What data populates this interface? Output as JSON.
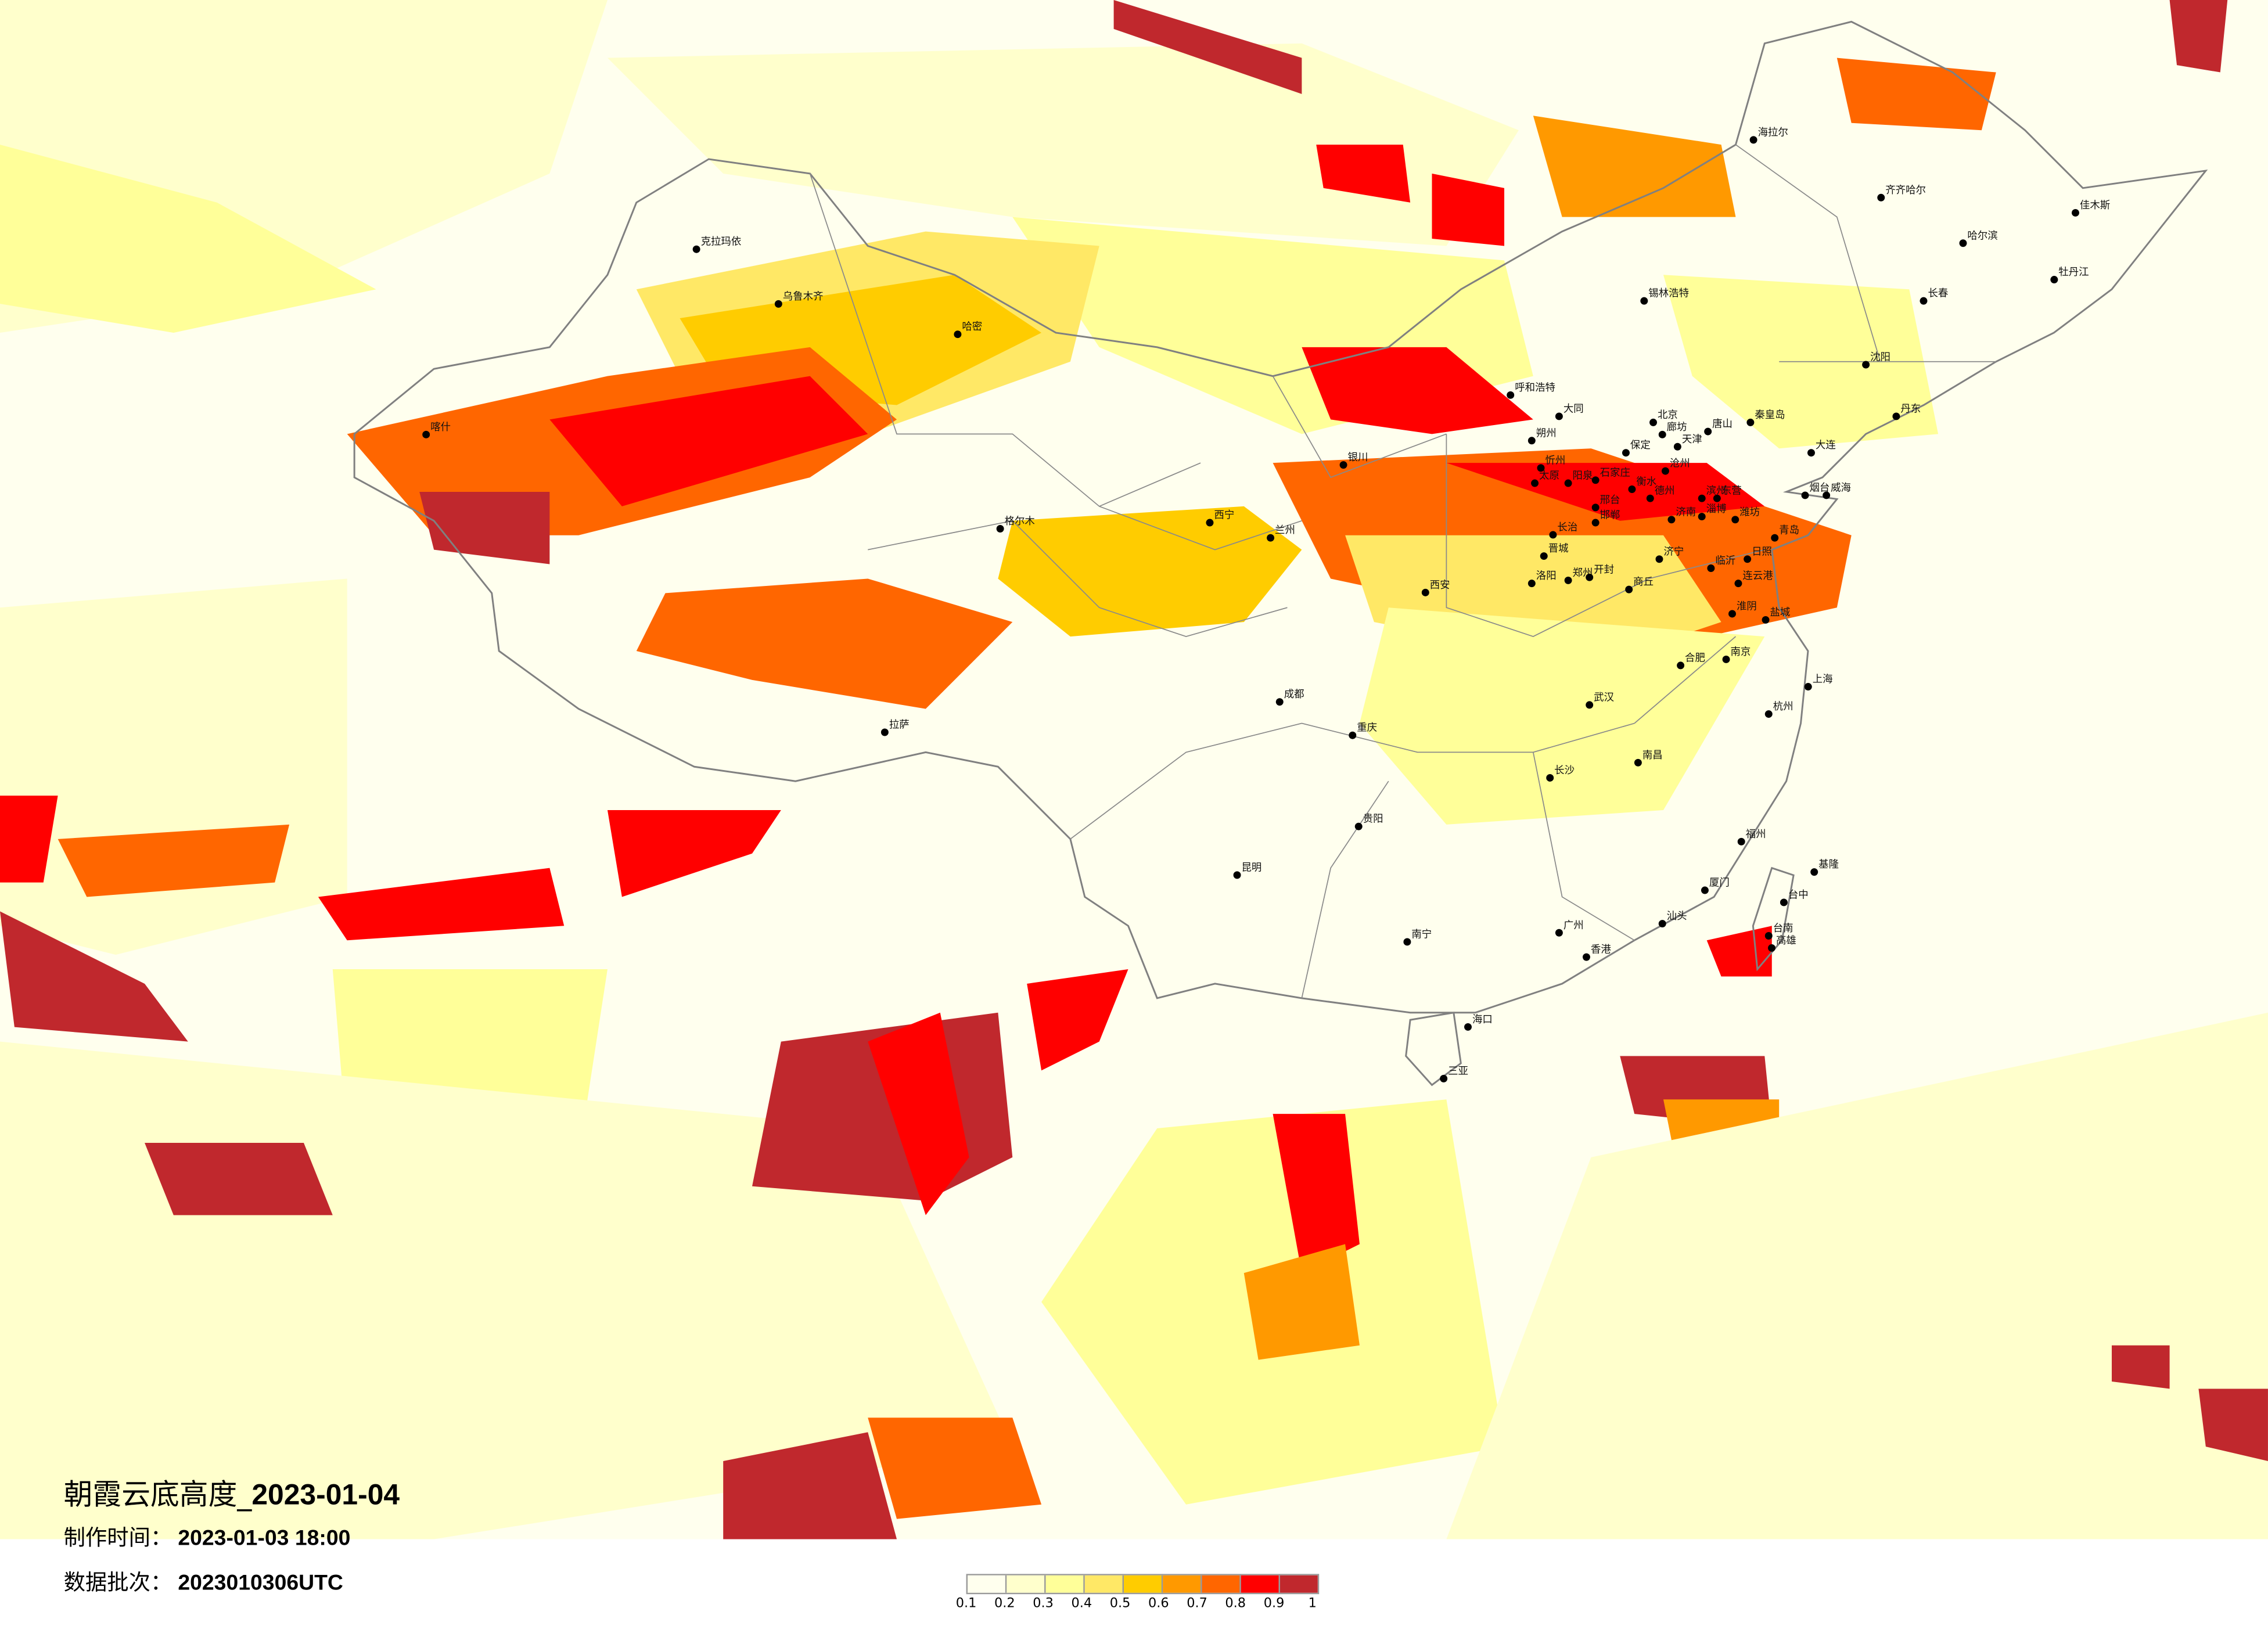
{
  "title": {
    "name": "朝霞云底高度_",
    "date": "2023-01-04"
  },
  "production_time": {
    "label": "制作时间：",
    "value": "2023-01-03 18:00"
  },
  "data_batch": {
    "label": "数据批次：",
    "value": "2023010306UTC"
  },
  "legend": {
    "labels": [
      "0.1",
      "0.2",
      "0.3",
      "0.4",
      "0.5",
      "0.6",
      "0.7",
      "0.8",
      "0.9",
      "1"
    ],
    "colors": [
      "#FFFFEE",
      "#FFFFCC",
      "#FFFF99",
      "#FFE866",
      "#FFCC00",
      "#FF9900",
      "#FF6600",
      "#FF0000",
      "#C0282D"
    ]
  },
  "map": {
    "background_color": "#FFFFEE",
    "border_color": "#808080",
    "cities": [
      {
        "name": "北京",
        "lon": 116.4,
        "lat": 39.9
      },
      {
        "name": "天津",
        "lon": 117.2,
        "lat": 39.1
      },
      {
        "name": "廊坊",
        "lon": 116.7,
        "lat": 39.5
      },
      {
        "name": "唐山",
        "lon": 118.2,
        "lat": 39.6
      },
      {
        "name": "秦皇岛",
        "lon": 119.6,
        "lat": 39.9
      },
      {
        "name": "保定",
        "lon": 115.5,
        "lat": 38.9
      },
      {
        "name": "沧州",
        "lon": 116.8,
        "lat": 38.3
      },
      {
        "name": "石家庄",
        "lon": 114.5,
        "lat": 38.0
      },
      {
        "name": "衡水",
        "lon": 115.7,
        "lat": 37.7
      },
      {
        "name": "德州",
        "lon": 116.3,
        "lat": 37.4
      },
      {
        "name": "滨州",
        "lon": 118.0,
        "lat": 37.4
      },
      {
        "name": "东营",
        "lon": 118.5,
        "lat": 37.4
      },
      {
        "name": "邢台",
        "lon": 114.5,
        "lat": 37.1
      },
      {
        "name": "邯郸",
        "lon": 114.5,
        "lat": 36.6
      },
      {
        "name": "济南",
        "lon": 117.0,
        "lat": 36.7
      },
      {
        "name": "淄博",
        "lon": 118.0,
        "lat": 36.8
      },
      {
        "name": "潍坊",
        "lon": 119.1,
        "lat": 36.7
      },
      {
        "name": "青岛",
        "lon": 120.4,
        "lat": 36.1
      },
      {
        "name": "烟台",
        "lon": 121.4,
        "lat": 37.5
      },
      {
        "name": "威海",
        "lon": 122.1,
        "lat": 37.5
      },
      {
        "name": "大连",
        "lon": 121.6,
        "lat": 38.9
      },
      {
        "name": "丹东",
        "lon": 124.4,
        "lat": 40.1
      },
      {
        "name": "大同",
        "lon": 113.3,
        "lat": 40.1
      },
      {
        "name": "朔州",
        "lon": 112.4,
        "lat": 39.3
      },
      {
        "name": "忻州",
        "lon": 112.7,
        "lat": 38.4
      },
      {
        "name": "太原",
        "lon": 112.5,
        "lat": 37.9
      },
      {
        "name": "阳泉",
        "lon": 113.6,
        "lat": 37.9
      },
      {
        "name": "长治",
        "lon": 113.1,
        "lat": 36.2
      },
      {
        "name": "晋城",
        "lon": 112.8,
        "lat": 35.5
      },
      {
        "name": "郑州",
        "lon": 113.6,
        "lat": 34.7
      },
      {
        "name": "开封",
        "lon": 114.3,
        "lat": 34.8
      },
      {
        "name": "洛阳",
        "lon": 112.4,
        "lat": 34.6
      },
      {
        "name": "商丘",
        "lon": 115.6,
        "lat": 34.4
      },
      {
        "name": "济宁",
        "lon": 116.6,
        "lat": 35.4
      },
      {
        "name": "临沂",
        "lon": 118.3,
        "lat": 35.1
      },
      {
        "name": "日照",
        "lon": 119.5,
        "lat": 35.4
      },
      {
        "name": "连云港",
        "lon": 119.2,
        "lat": 34.6
      },
      {
        "name": "淮阴",
        "lon": 119.0,
        "lat": 33.6
      },
      {
        "name": "盐城",
        "lon": 120.1,
        "lat": 33.4
      },
      {
        "name": "南京",
        "lon": 118.8,
        "lat": 32.1
      },
      {
        "name": "上海",
        "lon": 121.5,
        "lat": 31.2
      },
      {
        "name": "杭州",
        "lon": 120.2,
        "lat": 30.3
      },
      {
        "name": "合肥",
        "lon": 117.3,
        "lat": 31.9
      },
      {
        "name": "武汉",
        "lon": 114.3,
        "lat": 30.6
      },
      {
        "name": "长沙",
        "lon": 113.0,
        "lat": 28.2
      },
      {
        "name": "南昌",
        "lon": 115.9,
        "lat": 28.7
      },
      {
        "name": "福州",
        "lon": 119.3,
        "lat": 26.1
      },
      {
        "name": "厦门",
        "lon": 118.1,
        "lat": 24.5
      },
      {
        "name": "广州",
        "lon": 113.3,
        "lat": 23.1
      },
      {
        "name": "香港",
        "lon": 114.2,
        "lat": 22.3
      },
      {
        "name": "汕头",
        "lon": 116.7,
        "lat": 23.4
      },
      {
        "name": "台中",
        "lon": 120.7,
        "lat": 24.1
      },
      {
        "name": "台南",
        "lon": 120.2,
        "lat": 23.0
      },
      {
        "name": "高雄",
        "lon": 120.3,
        "lat": 22.6
      },
      {
        "name": "基隆",
        "lon": 121.7,
        "lat": 25.1
      },
      {
        "name": "南宁",
        "lon": 108.3,
        "lat": 22.8
      },
      {
        "name": "海口",
        "lon": 110.3,
        "lat": 20.0
      },
      {
        "name": "三亚",
        "lon": 109.5,
        "lat": 18.3
      },
      {
        "name": "贵阳",
        "lon": 106.7,
        "lat": 26.6
      },
      {
        "name": "昆明",
        "lon": 102.7,
        "lat": 25.0
      },
      {
        "name": "成都",
        "lon": 104.1,
        "lat": 30.7
      },
      {
        "name": "重庆",
        "lon": 106.5,
        "lat": 29.6
      },
      {
        "name": "西安",
        "lon": 108.9,
        "lat": 34.3
      },
      {
        "name": "兰州",
        "lon": 103.8,
        "lat": 36.1
      },
      {
        "name": "西宁",
        "lon": 101.8,
        "lat": 36.6
      },
      {
        "name": "银川",
        "lon": 106.2,
        "lat": 38.5
      },
      {
        "name": "呼和浩特",
        "lon": 111.7,
        "lat": 40.8
      },
      {
        "name": "拉萨",
        "lon": 91.1,
        "lat": 29.7
      },
      {
        "name": "格尔木",
        "lon": 94.9,
        "lat": 36.4
      },
      {
        "name": "乌鲁木齐",
        "lon": 87.6,
        "lat": 43.8
      },
      {
        "name": "克拉玛依",
        "lon": 84.9,
        "lat": 45.6
      },
      {
        "name": "喀什",
        "lon": 76.0,
        "lat": 39.5
      },
      {
        "name": "哈密",
        "lon": 93.5,
        "lat": 42.8
      },
      {
        "name": "沈阳",
        "lon": 123.4,
        "lat": 41.8
      },
      {
        "name": "长春",
        "lon": 125.3,
        "lat": 43.9
      },
      {
        "name": "哈尔滨",
        "lon": 126.6,
        "lat": 45.8
      },
      {
        "name": "齐齐哈尔",
        "lon": 123.9,
        "lat": 47.3
      },
      {
        "name": "海拉尔",
        "lon": 119.7,
        "lat": 49.2
      },
      {
        "name": "佳木斯",
        "lon": 130.3,
        "lat": 46.8
      },
      {
        "name": "牡丹江",
        "lon": 129.6,
        "lat": 44.6
      },
      {
        "name": "锡林浩特",
        "lon": 116.1,
        "lat": 43.9
      }
    ]
  }
}
